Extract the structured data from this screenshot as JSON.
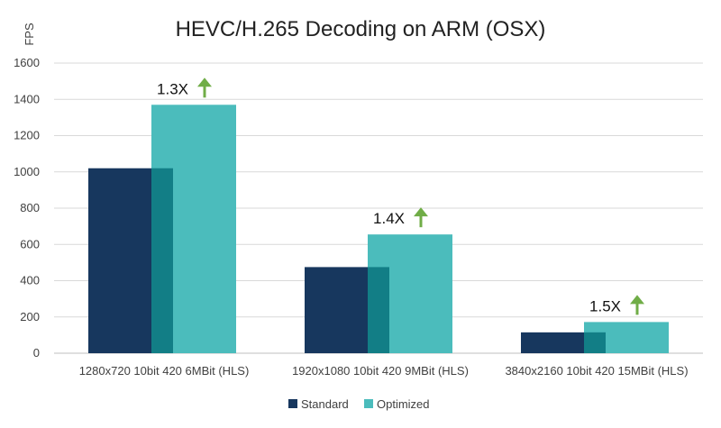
{
  "chart_data": {
    "type": "bar",
    "title": "HEVC/H.265 Decoding on ARM (OSX)",
    "ylabel": "FPS",
    "xlabel": "",
    "ylim": [
      0,
      1600
    ],
    "yticks": [
      0,
      200,
      400,
      600,
      800,
      1000,
      1200,
      1400,
      1600
    ],
    "grid": true,
    "legend_position": "bottom",
    "categories": [
      "1280x720 10bit 420 6MBit (HLS)",
      "1920x1080 10bit 420 9MBit (HLS)",
      "3840x2160 10bit 420 15MBit (HLS)"
    ],
    "series": [
      {
        "name": "Standard",
        "values": [
          1020,
          475,
          115
        ],
        "color": "#17375e"
      },
      {
        "name": "Optimized",
        "values": [
          1370,
          655,
          172
        ],
        "color": "#4bbcbc"
      }
    ],
    "overlap_color": "#127e86",
    "annotations": [
      "1.3X",
      "1.4X",
      "1.5X"
    ],
    "arrow_color": "#70ad47"
  }
}
